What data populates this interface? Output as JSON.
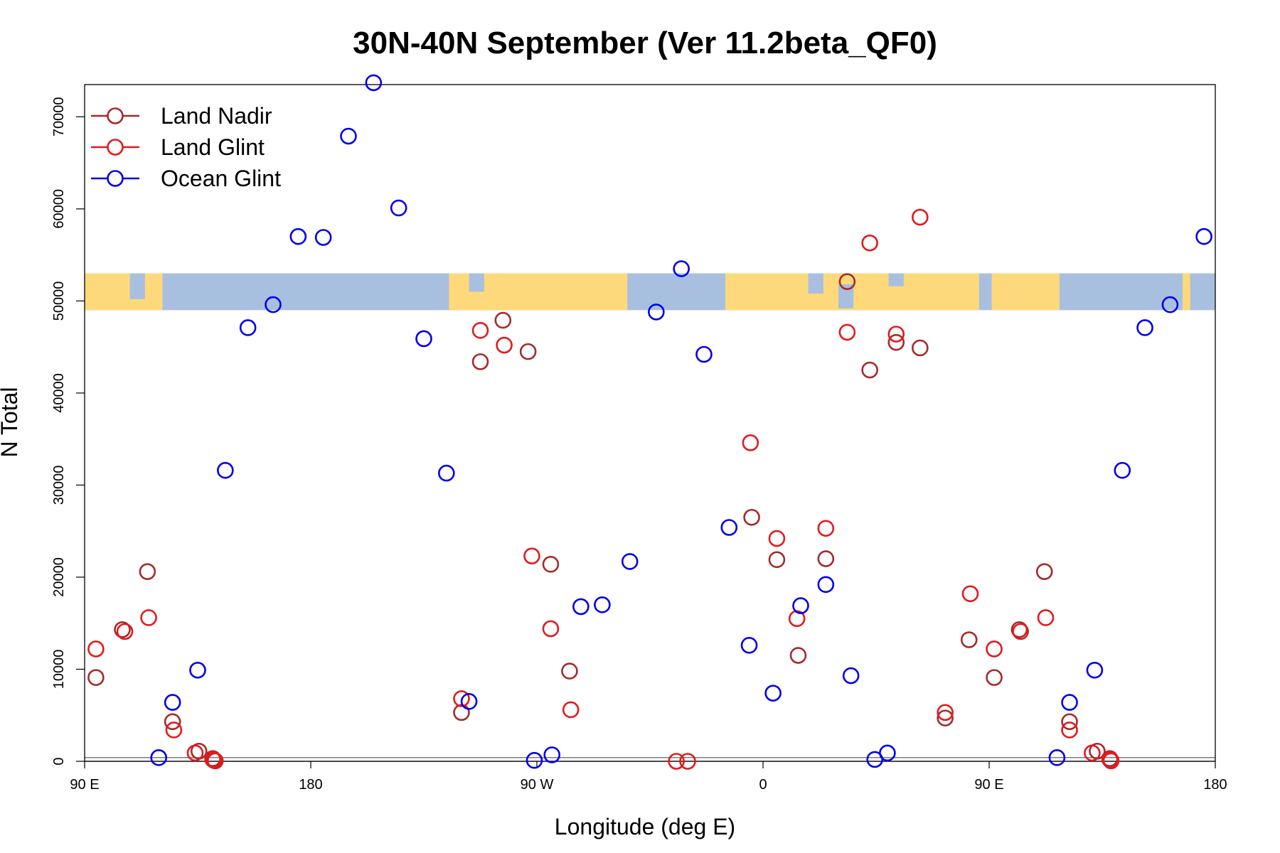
{
  "chart_data": {
    "type": "scatter",
    "title": "30N-40N September (Ver 11.2beta_QF0)",
    "xlabel": "Longitude (deg E)",
    "ylabel": "N Total",
    "xlim": [
      90,
      540
    ],
    "ylim": [
      0,
      73500
    ],
    "x_ticks": [
      {
        "value": 90,
        "label": "90 E"
      },
      {
        "value": 180,
        "label": "180"
      },
      {
        "value": 270,
        "label": "90 W"
      },
      {
        "value": 360,
        "label": "0"
      },
      {
        "value": 450,
        "label": "90 E"
      },
      {
        "value": 540,
        "label": "180"
      }
    ],
    "y_ticks": [
      {
        "value": 0,
        "label": "0"
      },
      {
        "value": 10000,
        "label": "10000"
      },
      {
        "value": 20000,
        "label": "20000"
      },
      {
        "value": 30000,
        "label": "30000"
      },
      {
        "value": 40000,
        "label": "40000"
      },
      {
        "value": 50000,
        "label": "50000"
      },
      {
        "value": 60000,
        "label": "60000"
      },
      {
        "value": 70000,
        "label": "70000"
      }
    ],
    "map_band": {
      "y_range": [
        49000,
        53000
      ],
      "ocean_color": "#a8bfdf",
      "land_color": "#fdd97c"
    },
    "legend": {
      "position": "top-left"
    },
    "series": [
      {
        "name": "Land Nadir",
        "color": "#a52a2a",
        "points": [
          [
            94.5,
            9100
          ],
          [
            105,
            14300
          ],
          [
            115,
            20600
          ],
          [
            125,
            4300
          ],
          [
            135.5,
            1100
          ],
          [
            141,
            300
          ],
          [
            141.5,
            100
          ],
          [
            240,
            5300
          ],
          [
            247.5,
            43400
          ],
          [
            256.5,
            47900
          ],
          [
            266.5,
            44500
          ],
          [
            275.5,
            21400
          ],
          [
            283,
            9800
          ],
          [
            355.5,
            26500
          ],
          [
            365.5,
            21900
          ],
          [
            374,
            11500
          ],
          [
            385,
            22000
          ],
          [
            393.5,
            52100
          ],
          [
            402.5,
            42500
          ],
          [
            413,
            45500
          ],
          [
            422.5,
            44900
          ],
          [
            432.5,
            4700
          ],
          [
            442,
            13200
          ],
          [
            452,
            9100
          ],
          [
            462,
            14300
          ],
          [
            472,
            20600
          ],
          [
            482,
            4300
          ],
          [
            493,
            1100
          ],
          [
            498,
            300
          ],
          [
            498.5,
            100
          ]
        ]
      },
      {
        "name": "Land Glint",
        "color": "#e31a1c",
        "points": [
          [
            94.5,
            12200
          ],
          [
            106,
            14100
          ],
          [
            115.5,
            15600
          ],
          [
            125.5,
            3400
          ],
          [
            134,
            900
          ],
          [
            141,
            200
          ],
          [
            142,
            50
          ],
          [
            240,
            6800
          ],
          [
            247.5,
            46800
          ],
          [
            257,
            45200
          ],
          [
            268,
            22300
          ],
          [
            275.5,
            14400
          ],
          [
            283.5,
            5600
          ],
          [
            325.5,
            0
          ],
          [
            330,
            0
          ],
          [
            355,
            34600
          ],
          [
            365.5,
            24200
          ],
          [
            373.5,
            15500
          ],
          [
            385,
            25300
          ],
          [
            393.5,
            46600
          ],
          [
            402.5,
            56300
          ],
          [
            413,
            46400
          ],
          [
            422.5,
            59100
          ],
          [
            432.5,
            5300
          ],
          [
            442.5,
            18200
          ],
          [
            452,
            12200
          ],
          [
            462.5,
            14100
          ],
          [
            472.5,
            15600
          ],
          [
            482,
            3400
          ],
          [
            491,
            900
          ],
          [
            498,
            200
          ],
          [
            498.5,
            50
          ]
        ]
      },
      {
        "name": "Ocean Glint",
        "color": "#0000ee",
        "points": [
          [
            119.5,
            400
          ],
          [
            125,
            6400
          ],
          [
            135,
            9900
          ],
          [
            146,
            31600
          ],
          [
            155,
            47100
          ],
          [
            165,
            49600
          ],
          [
            175,
            57000
          ],
          [
            185,
            56900
          ],
          [
            195,
            67900
          ],
          [
            205,
            73700
          ],
          [
            215,
            60100
          ],
          [
            225,
            45900
          ],
          [
            234,
            31300
          ],
          [
            243,
            6500
          ],
          [
            269,
            100
          ],
          [
            276,
            700
          ],
          [
            287.5,
            16800
          ],
          [
            296,
            17000
          ],
          [
            307,
            21700
          ],
          [
            317.5,
            48800
          ],
          [
            327.5,
            53500
          ],
          [
            336.5,
            44200
          ],
          [
            346.5,
            25400
          ],
          [
            354.5,
            12600
          ],
          [
            364,
            7400
          ],
          [
            375,
            16900
          ],
          [
            385,
            19200
          ],
          [
            395,
            9300
          ],
          [
            404.5,
            200
          ],
          [
            409.5,
            900
          ],
          [
            477,
            400
          ],
          [
            482,
            6400
          ],
          [
            492,
            9900
          ],
          [
            503,
            31600
          ],
          [
            512,
            47100
          ],
          [
            522,
            49600
          ],
          [
            535.5,
            57000
          ]
        ]
      }
    ]
  }
}
